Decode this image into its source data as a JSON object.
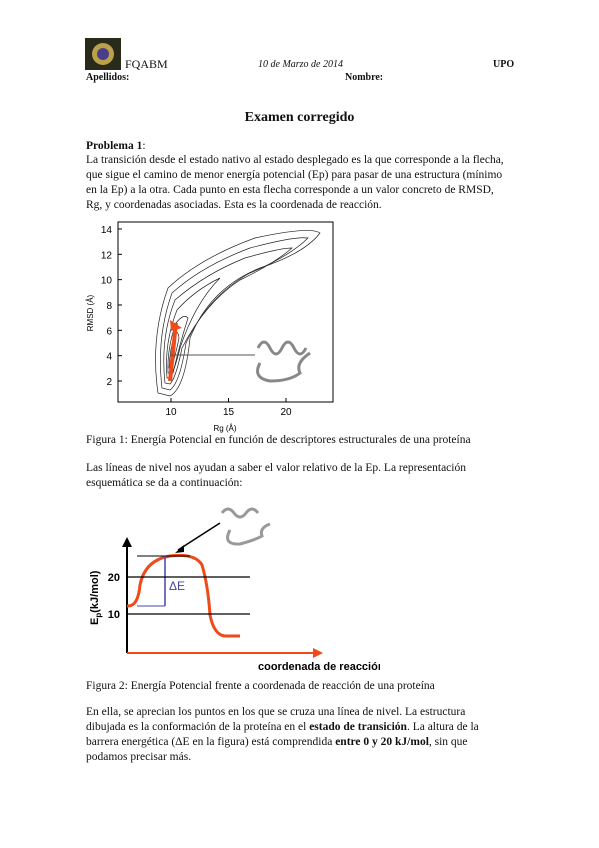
{
  "header": {
    "org": "FQABM",
    "date": "10 de Marzo de 2014",
    "institution": "UPO",
    "surname_label": "Apellidos:",
    "name_label": "Nombre:"
  },
  "title": "Examen corregido",
  "problem": {
    "label": "Problema 1",
    "colon": ":",
    "paragraph": "La transición desde el estado nativo al estado desplegado es la que corresponde a la flecha, que sigue el camino de menor energía potencial (Ep) para pasar de una estructura (mínimo en la Ep) a la otra. Cada punto en esta flecha corresponde a un valor concreto de RMSD, Rg, y coordenadas asociadas. Esta es la coordenada de reacción."
  },
  "figure1": {
    "y_label": "RMSD (Å)",
    "x_label": "Rg (Å)",
    "yticks": [
      2,
      4,
      6,
      8,
      10,
      12,
      14
    ],
    "xticks": [
      10,
      15,
      20
    ],
    "caption": "Figura 1: Energía Potencial en función de descriptores estructurales de una proteína"
  },
  "paragraph2": "Las líneas de nivel nos ayudan a saber el valor relativo de la Ep. La representación esquemática se da a continuación:",
  "figure2": {
    "y_label": {
      "main": "E",
      "sub": "p",
      "unit": "(kJ/mol)"
    },
    "yticks": [
      10,
      20
    ],
    "delta_label": "ΔE",
    "x_label": "coordenada de reacción",
    "caption": "Figura 2: Energía Potencial frente a coordenada de reacción de una proteína"
  },
  "paragraph3": [
    {
      "text": "En ella, se aprecian los puntos en los que se cruza una línea de nivel. La estructura dibujada es la conformación de la proteína en el ",
      "bold": false
    },
    {
      "text": "estado de transición",
      "bold": true
    },
    {
      "text": ". La altura de la barrera energética (ΔE en la figura) está comprendida ",
      "bold": false
    },
    {
      "text": "entre 0 y 20 kJ/mol",
      "bold": true
    },
    {
      "text": ", sin que podamos precisar más.",
      "bold": false
    }
  ]
}
